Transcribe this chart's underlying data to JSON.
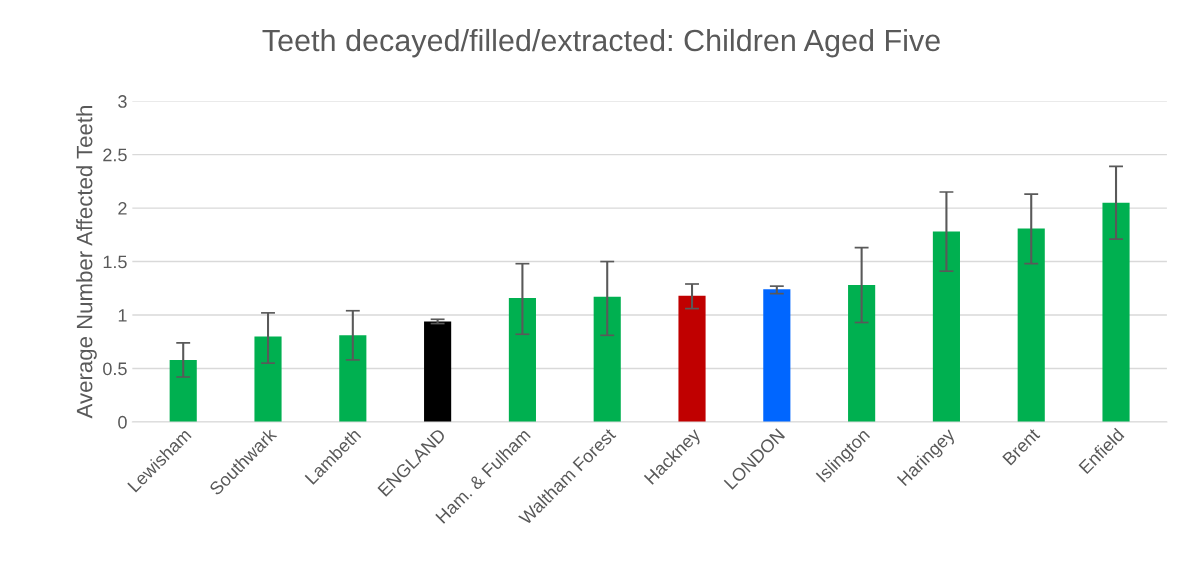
{
  "chart_data": {
    "type": "bar",
    "title": "Teeth decayed/filled/extracted: Children Aged Five",
    "ylabel": "Average Number Affected Teeth",
    "categories": [
      "Lewisham",
      "Southwark",
      "Lambeth",
      "ENGLAND",
      "Ham. & Fulham",
      "Waltham Forest",
      "Hackney",
      "LONDON",
      "Islington",
      "Haringey",
      "Brent",
      "Enfield"
    ],
    "values": [
      0.58,
      0.8,
      0.81,
      0.94,
      1.16,
      1.17,
      1.18,
      1.24,
      1.28,
      1.78,
      1.81,
      2.05
    ],
    "errors": [
      [
        0.42,
        0.74
      ],
      [
        0.55,
        1.02
      ],
      [
        0.58,
        1.04
      ],
      [
        0.92,
        0.96
      ],
      [
        0.82,
        1.48
      ],
      [
        0.81,
        1.5
      ],
      [
        1.06,
        1.29
      ],
      [
        1.2,
        1.27
      ],
      [
        0.93,
        1.63
      ],
      [
        1.41,
        2.15
      ],
      [
        1.48,
        2.13
      ],
      [
        1.71,
        2.39
      ]
    ],
    "colors": [
      "#00b050",
      "#00b050",
      "#00b050",
      "#000000",
      "#00b050",
      "#00b050",
      "#c00000",
      "#0066ff",
      "#00b050",
      "#00b050",
      "#00b050",
      "#00b050"
    ],
    "ylim": [
      0,
      3
    ],
    "yticks": [
      0,
      0.5,
      1,
      1.5,
      2,
      2.5,
      3
    ],
    "grid": "y"
  }
}
